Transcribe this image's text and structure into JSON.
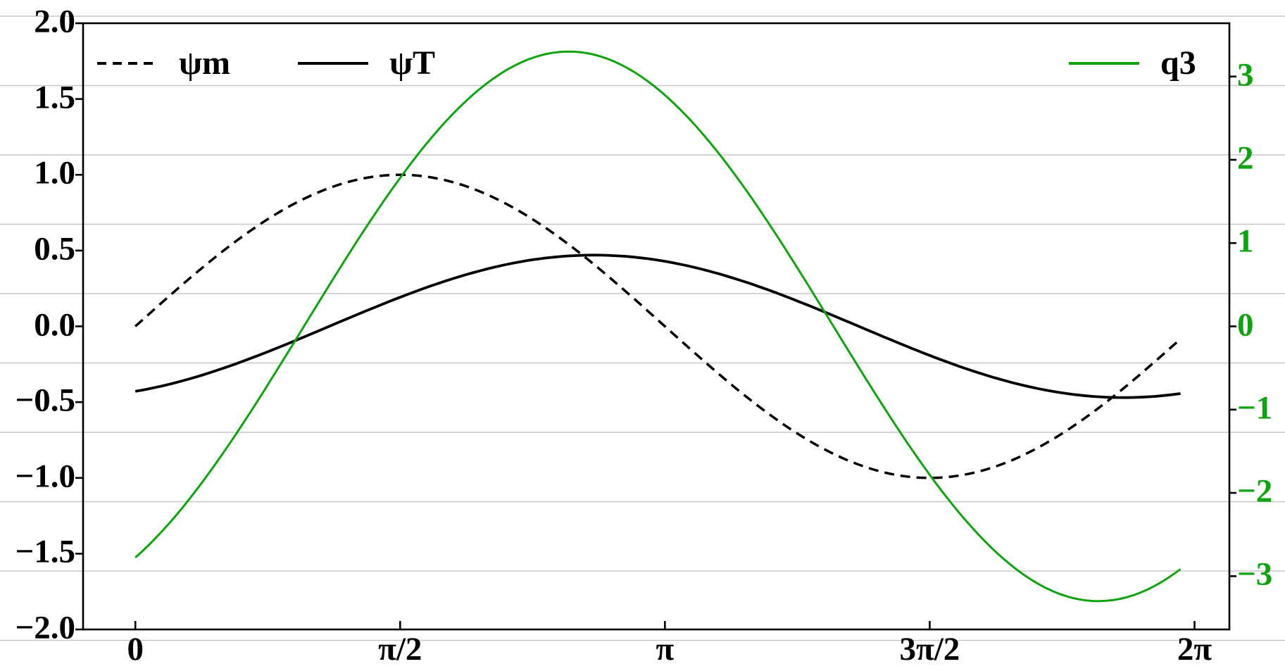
{
  "chart_data": {
    "type": "line",
    "title": "",
    "background": "#ffffff",
    "grid": {
      "show": true,
      "full_width": true,
      "color": "#c8c8c8"
    },
    "axes": {
      "x": {
        "lim": [
          -0.31,
          6.49
        ],
        "tick_values": [
          0,
          1.5708,
          3.1416,
          4.7124,
          6.2832
        ],
        "tick_labels": [
          "0",
          "π/2",
          "π",
          "3π/2",
          "2π"
        ],
        "color": "#000000"
      },
      "left": {
        "lim": [
          -2.0,
          2.0
        ],
        "tick_values": [
          2.0,
          1.5,
          1.0,
          0.5,
          0.0,
          -0.5,
          -1.0,
          -1.5,
          -2.0
        ],
        "tick_labels": [
          "2.0",
          "1.5",
          "1.0",
          "0.5",
          "0.0",
          "−0.5",
          "−1.0",
          "−1.5",
          "−2.0"
        ],
        "color": "#000000"
      },
      "right": {
        "lim": [
          -3.64,
          3.64
        ],
        "tick_values": [
          3,
          2,
          1,
          0,
          -1,
          -2,
          -3
        ],
        "tick_labels": [
          "3",
          "2",
          "1",
          "0",
          "−1",
          "−2",
          "−3"
        ],
        "color": "#10a210"
      }
    },
    "series": [
      {
        "name": "ψm",
        "axis": "left",
        "color": "#000000",
        "style": "dashed",
        "line_width": 3.5,
        "model": {
          "form": "A*sin(x-phi)",
          "amplitude": 1.0,
          "phase": 0.0,
          "x_start": 0,
          "x_end": 6.2
        },
        "points": [
          [
            0,
            0.0
          ],
          [
            0.62,
            0.581
          ],
          [
            1.24,
            0.946
          ],
          [
            1.86,
            0.958
          ],
          [
            2.48,
            0.614
          ],
          [
            3.1,
            0.042
          ],
          [
            3.72,
            -0.546
          ],
          [
            4.34,
            -0.931
          ],
          [
            4.96,
            -0.969
          ],
          [
            5.58,
            -0.647
          ],
          [
            6.2,
            -0.083
          ]
        ]
      },
      {
        "name": "ψT",
        "axis": "left",
        "color": "#000000",
        "style": "solid",
        "line_width": 3.8,
        "model": {
          "form": "A*sin(x-phi)",
          "amplitude": 0.47,
          "phase": 1.15,
          "x_start": 0,
          "x_end": 6.2
        },
        "points": [
          [
            0,
            -0.429
          ],
          [
            0.62,
            -0.238
          ],
          [
            1.24,
            0.042
          ],
          [
            1.86,
            0.306
          ],
          [
            2.48,
            0.456
          ],
          [
            3.1,
            0.437
          ],
          [
            3.72,
            0.254
          ],
          [
            4.34,
            -0.023
          ],
          [
            4.96,
            -0.292
          ],
          [
            5.58,
            -0.452
          ],
          [
            6.2,
            -0.444
          ]
        ]
      },
      {
        "name": "q3",
        "axis": "right",
        "color": "#10a210",
        "style": "solid",
        "line_width": 3.0,
        "model": {
          "form": "A*sin(x-phi)",
          "amplitude": 3.3,
          "phase": 1.0,
          "x_start": 0,
          "x_end": 6.2
        },
        "points": [
          [
            0,
            -2.777
          ],
          [
            0.62,
            -1.224
          ],
          [
            1.24,
            0.784
          ],
          [
            1.86,
            2.501
          ],
          [
            2.48,
            3.286
          ],
          [
            3.1,
            2.849
          ],
          [
            3.72,
            1.35
          ],
          [
            4.34,
            -0.653
          ],
          [
            4.96,
            -2.413
          ],
          [
            5.58,
            -3.276
          ],
          [
            6.2,
            -2.916
          ]
        ]
      }
    ],
    "legends": [
      {
        "position": "upper-left",
        "items": [
          {
            "label": "ψm"
          },
          {
            "label": "ψT"
          }
        ]
      },
      {
        "position": "upper-right",
        "items": [
          {
            "label": "q3"
          }
        ]
      }
    ]
  }
}
